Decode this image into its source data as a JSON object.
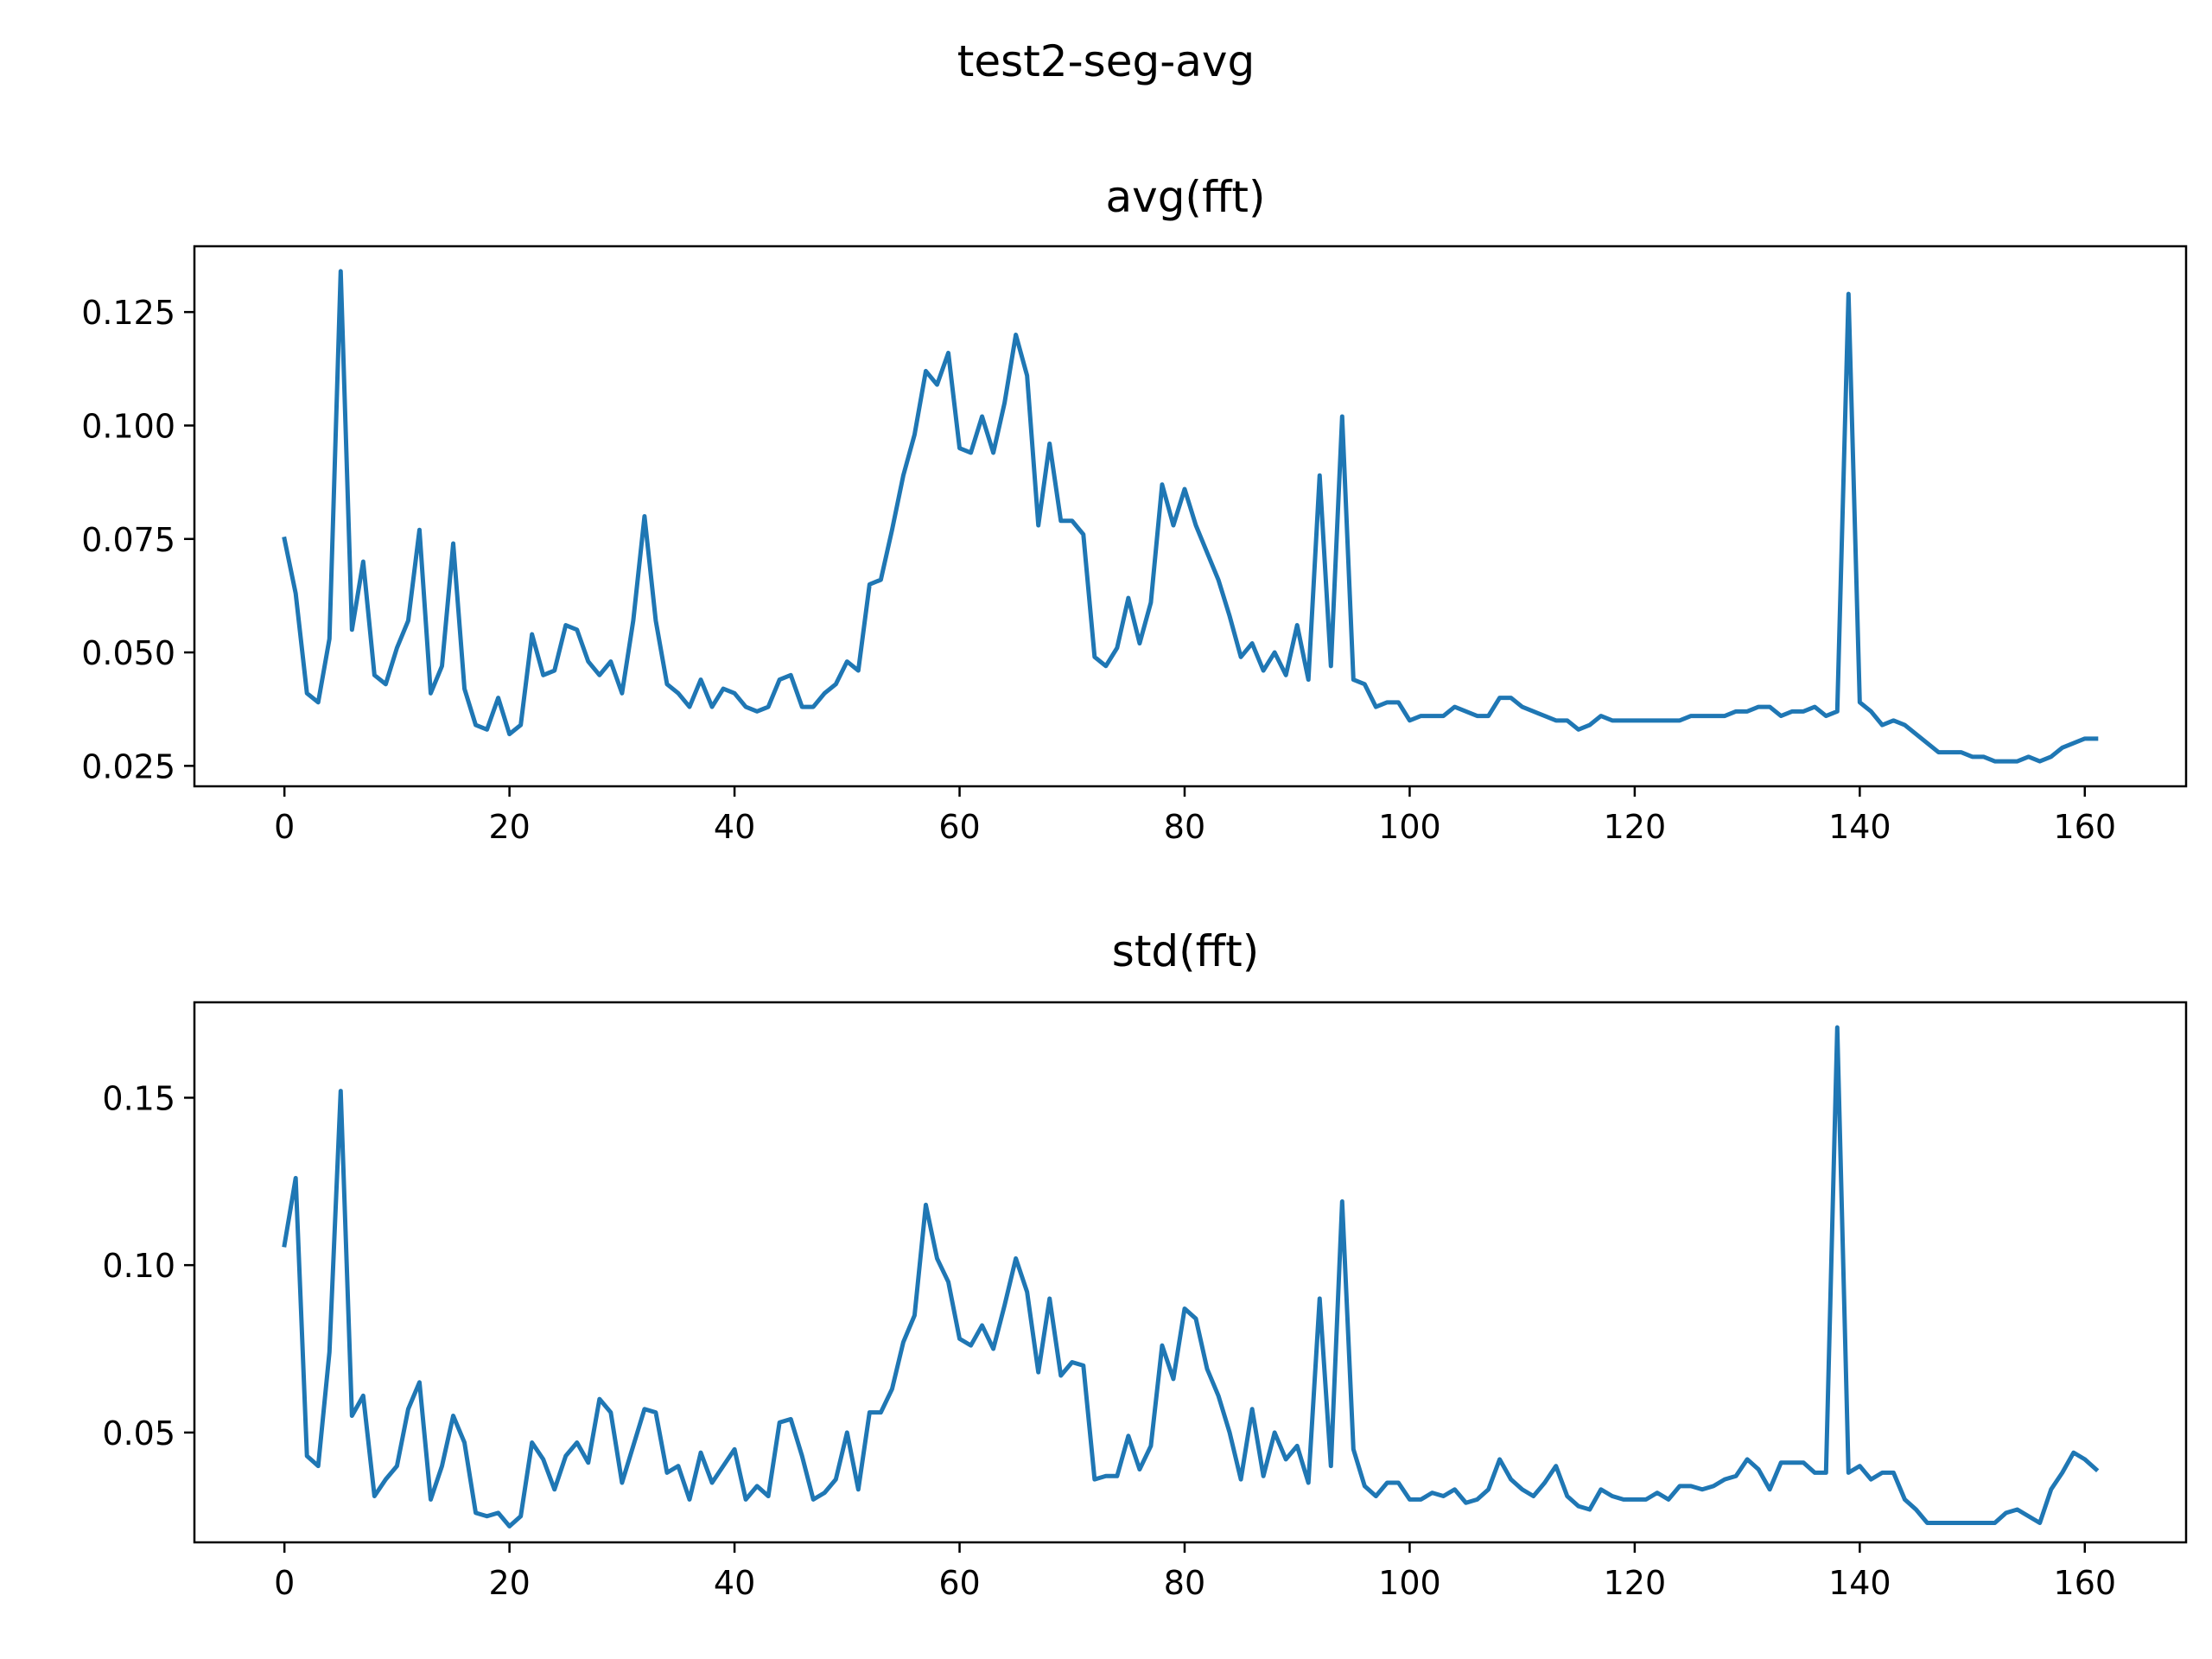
{
  "figure": {
    "suptitle": "test2-seg-avg"
  },
  "chart_data": [
    {
      "type": "line",
      "title": "avg(fft)",
      "xlabel": "",
      "ylabel": "",
      "xlim": [
        -8,
        169
      ],
      "ylim": [
        0.0205,
        0.1395
      ],
      "xticks": [
        0,
        20,
        40,
        60,
        80,
        100,
        120,
        140,
        160
      ],
      "yticks": [
        0.025,
        0.05,
        0.075,
        0.1,
        0.125
      ],
      "ytick_labels": [
        "0.025",
        "0.050",
        "0.075",
        "0.100",
        "0.125"
      ],
      "grid": false,
      "color": "#1f77b4",
      "series": [
        {
          "values": [
            0.075,
            0.063,
            0.041,
            0.039,
            0.053,
            0.134,
            0.055,
            0.07,
            0.045,
            0.043,
            0.051,
            0.057,
            0.077,
            0.041,
            0.047,
            0.074,
            0.042,
            0.034,
            0.033,
            0.04,
            0.032,
            0.034,
            0.054,
            0.045,
            0.046,
            0.056,
            0.055,
            0.048,
            0.045,
            0.048,
            0.041,
            0.057,
            0.08,
            0.057,
            0.043,
            0.041,
            0.038,
            0.044,
            0.038,
            0.042,
            0.041,
            0.038,
            0.037,
            0.038,
            0.044,
            0.045,
            0.038,
            0.038,
            0.041,
            0.043,
            0.048,
            0.046,
            0.065,
            0.066,
            0.077,
            0.089,
            0.098,
            0.112,
            0.109,
            0.116,
            0.095,
            0.094,
            0.102,
            0.094,
            0.105,
            0.12,
            0.111,
            0.078,
            0.096,
            0.079,
            0.079,
            0.076,
            0.049,
            0.047,
            0.051,
            0.062,
            0.052,
            0.061,
            0.087,
            0.078,
            0.086,
            0.078,
            0.072,
            0.066,
            0.058,
            0.049,
            0.052,
            0.046,
            0.05,
            0.045,
            0.056,
            0.044,
            0.089,
            0.047,
            0.102,
            0.044,
            0.043,
            0.038,
            0.039,
            0.039,
            0.035,
            0.036,
            0.036,
            0.036,
            0.038,
            0.037,
            0.036,
            0.036,
            0.04,
            0.04,
            0.038,
            0.037,
            0.036,
            0.035,
            0.035,
            0.033,
            0.034,
            0.036,
            0.035,
            0.035,
            0.035,
            0.035,
            0.035,
            0.035,
            0.035,
            0.036,
            0.036,
            0.036,
            0.036,
            0.037,
            0.037,
            0.038,
            0.038,
            0.036,
            0.037,
            0.037,
            0.038,
            0.036,
            0.037,
            0.129,
            0.039,
            0.037,
            0.034,
            0.035,
            0.034,
            0.032,
            0.03,
            0.028,
            0.028,
            0.028,
            0.027,
            0.027,
            0.026,
            0.026,
            0.026,
            0.027,
            0.026,
            0.027,
            0.029,
            0.03,
            0.031,
            0.031
          ]
        }
      ]
    },
    {
      "type": "line",
      "title": "std(fft)",
      "xlabel": "",
      "ylabel": "",
      "xlim": [
        -8,
        169
      ],
      "ylim": [
        0.0172,
        0.1785
      ],
      "xticks": [
        0,
        20,
        40,
        60,
        80,
        100,
        120,
        140,
        160
      ],
      "yticks": [
        0.05,
        0.1,
        0.15
      ],
      "ytick_labels": [
        "0.05",
        "0.10",
        "0.15"
      ],
      "grid": false,
      "color": "#1f77b4",
      "series": [
        {
          "values": [
            0.106,
            0.126,
            0.043,
            0.04,
            0.074,
            0.152,
            0.055,
            0.061,
            0.031,
            0.036,
            0.04,
            0.057,
            0.065,
            0.03,
            0.04,
            0.055,
            0.047,
            0.026,
            0.025,
            0.026,
            0.022,
            0.025,
            0.047,
            0.042,
            0.033,
            0.043,
            0.047,
            0.041,
            0.06,
            0.056,
            0.035,
            0.046,
            0.057,
            0.056,
            0.038,
            0.04,
            0.03,
            0.044,
            0.035,
            0.04,
            0.045,
            0.03,
            0.034,
            0.031,
            0.053,
            0.054,
            0.043,
            0.03,
            0.032,
            0.036,
            0.05,
            0.033,
            0.056,
            0.056,
            0.063,
            0.077,
            0.085,
            0.118,
            0.102,
            0.095,
            0.078,
            0.076,
            0.082,
            0.075,
            0.088,
            0.102,
            0.092,
            0.068,
            0.09,
            0.067,
            0.071,
            0.07,
            0.036,
            0.037,
            0.037,
            0.049,
            0.039,
            0.046,
            0.076,
            0.066,
            0.087,
            0.084,
            0.069,
            0.061,
            0.05,
            0.036,
            0.057,
            0.037,
            0.05,
            0.042,
            0.046,
            0.035,
            0.09,
            0.04,
            0.119,
            0.045,
            0.034,
            0.031,
            0.035,
            0.035,
            0.03,
            0.03,
            0.032,
            0.031,
            0.033,
            0.029,
            0.03,
            0.033,
            0.042,
            0.036,
            0.033,
            0.031,
            0.035,
            0.04,
            0.031,
            0.028,
            0.027,
            0.033,
            0.031,
            0.03,
            0.03,
            0.03,
            0.032,
            0.03,
            0.034,
            0.034,
            0.033,
            0.034,
            0.036,
            0.037,
            0.042,
            0.039,
            0.033,
            0.041,
            0.041,
            0.041,
            0.038,
            0.038,
            0.171,
            0.038,
            0.04,
            0.036,
            0.038,
            0.038,
            0.03,
            0.027,
            0.023,
            0.023,
            0.023,
            0.023,
            0.023,
            0.023,
            0.023,
            0.026,
            0.027,
            0.025,
            0.023,
            0.033,
            0.038,
            0.044,
            0.042,
            0.039
          ]
        }
      ]
    }
  ]
}
